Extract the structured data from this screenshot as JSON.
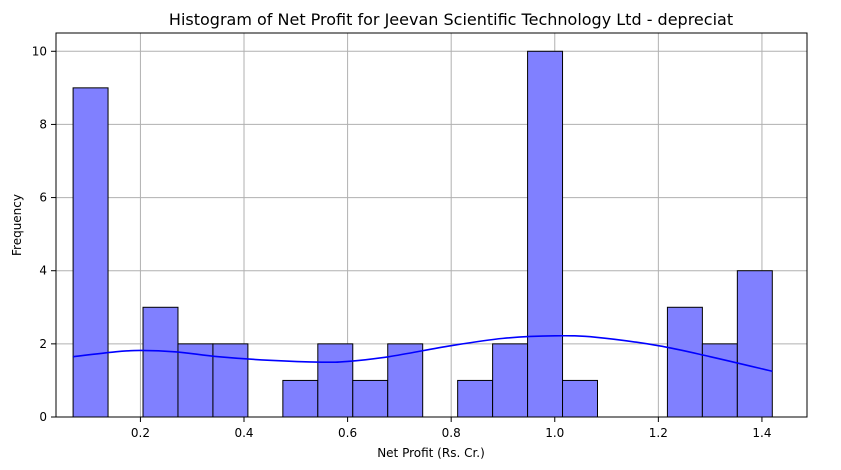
{
  "chart_data": {
    "type": "bar",
    "title": "Histogram of Net Profit for Jeevan Scientific Technology Ltd - depreciat",
    "xlabel": "Net Profit (Rs. Cr.)",
    "ylabel": "Frequency",
    "xlim": [
      0.037,
      1.487
    ],
    "ylim": [
      0,
      10.5
    ],
    "xticks": [
      "0.2",
      "0.4",
      "0.6",
      "0.8",
      "1.0",
      "1.2",
      "1.4"
    ],
    "yticks": [
      "0",
      "2",
      "4",
      "6",
      "8",
      "10"
    ],
    "grid": true,
    "bin_edges": [
      0.07,
      0.1375,
      0.205,
      0.2725,
      0.34,
      0.4075,
      0.475,
      0.5425,
      0.61,
      0.6775,
      0.745,
      0.8125,
      0.88,
      0.9475,
      1.015,
      1.0825,
      1.15,
      1.2175,
      1.285,
      1.3525,
      1.42
    ],
    "counts": [
      9,
      0,
      3,
      2,
      2,
      0,
      1,
      2,
      1,
      2,
      0,
      1,
      2,
      10,
      1,
      0,
      0,
      3,
      2,
      4
    ],
    "kde": {
      "x": [
        0.07,
        0.15,
        0.2,
        0.27,
        0.35,
        0.45,
        0.55,
        0.6,
        0.68,
        0.8,
        0.9,
        1.0,
        1.08,
        1.2,
        1.3,
        1.42
      ],
      "y": [
        1.65,
        1.78,
        1.82,
        1.78,
        1.65,
        1.55,
        1.5,
        1.52,
        1.65,
        1.95,
        2.15,
        2.22,
        2.18,
        1.95,
        1.65,
        1.25
      ]
    },
    "colors": {
      "bar_fill": "#8080ff",
      "bar_edge": "#000000",
      "kde_line": "#0000ff",
      "grid": "#b0b0b0"
    }
  }
}
